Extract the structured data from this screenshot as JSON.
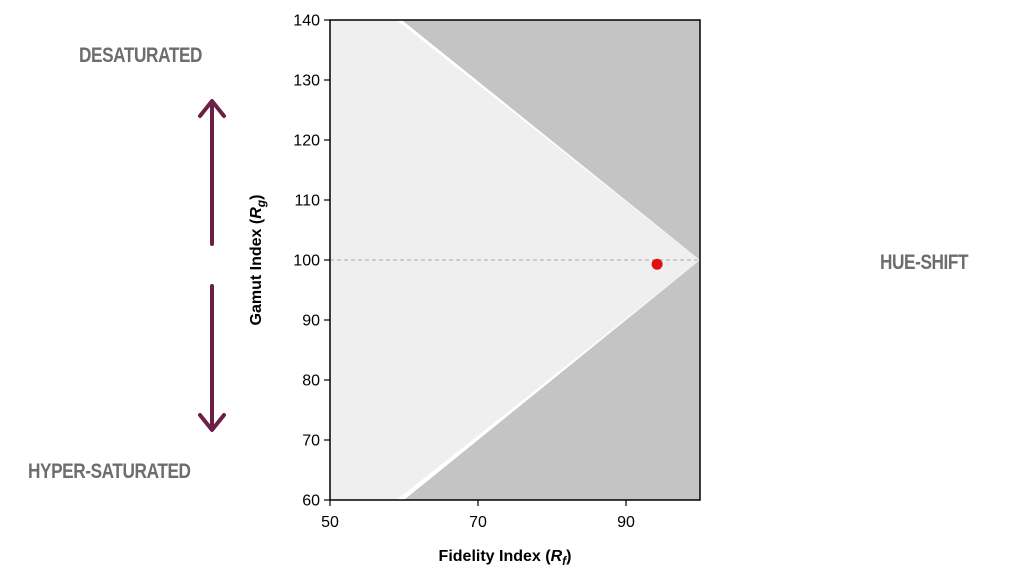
{
  "labels": {
    "top": "DESATURATED",
    "bottom": "HYPER-SATURATED",
    "right": "HUE-SHIFT"
  },
  "colors": {
    "arrow": "#6b2046",
    "dark_region": "#c4c4c4",
    "light_region": "#efefef",
    "point": "#e01010",
    "label": "#6d6d6d"
  },
  "chart_data": {
    "type": "scatter",
    "xlabel": {
      "prefix": "Fidelity Index (",
      "var": "R",
      "sub": "f",
      "suffix": ")"
    },
    "ylabel": {
      "prefix": "Gamut Index (",
      "var": "R",
      "sub": "g",
      "suffix": ")"
    },
    "xlim": [
      50,
      100
    ],
    "ylim": [
      60,
      140
    ],
    "xticks": [
      50,
      70,
      90
    ],
    "yticks": [
      60,
      70,
      80,
      90,
      100,
      110,
      120,
      130,
      140
    ],
    "reference_line_y": 100,
    "regions": {
      "light": [
        [
          50,
          140
        ],
        [
          59,
          140
        ],
        [
          100,
          100
        ],
        [
          59,
          60
        ],
        [
          50,
          60
        ]
      ],
      "dark": [
        [
          59.7,
          140
        ],
        [
          100,
          140
        ],
        [
          100,
          60
        ],
        [
          60,
          60
        ],
        [
          100,
          100
        ]
      ]
    },
    "points": [
      {
        "x": 94.2,
        "y": 99.3
      }
    ]
  }
}
